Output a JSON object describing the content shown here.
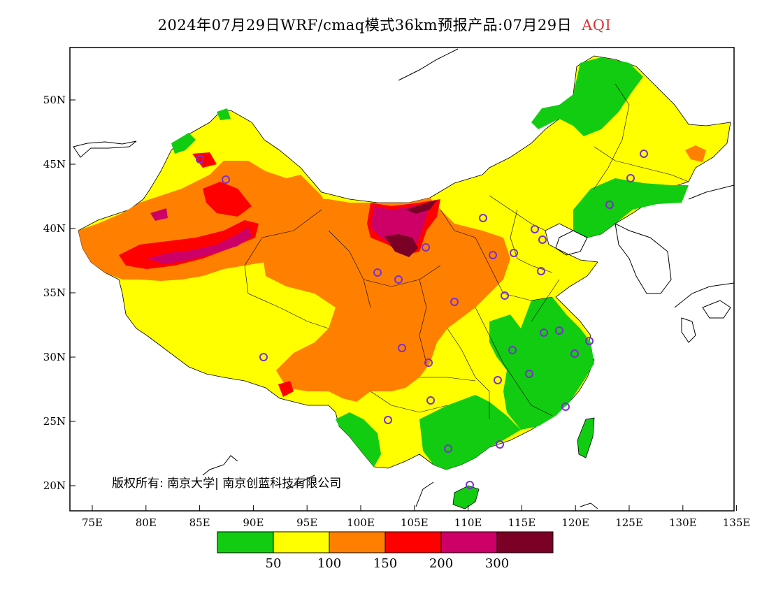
{
  "header": {
    "title": "2024年07月29日WRF/cmaq模式36km预报产品:07月29日",
    "variable": "AQI",
    "variable_color": "#e03030"
  },
  "map": {
    "x_ticks": [
      "75E",
      "80E",
      "85E",
      "90E",
      "95E",
      "100E",
      "105E",
      "110E",
      "115E",
      "120E",
      "125E",
      "130E",
      "135E"
    ],
    "y_ticks": [
      "50N",
      "45N",
      "40N",
      "35N",
      "30N",
      "25N",
      "20N"
    ],
    "copyright": "版权所有: 南京大学| 南京创蓝科技有限公司"
  },
  "legend": {
    "colors": [
      "#11cc11",
      "#ffff00",
      "#ff8000",
      "#ff0000",
      "#cc0066",
      "#7a0026"
    ],
    "labels": [
      "50",
      "100",
      "150",
      "200",
      "300"
    ]
  }
}
